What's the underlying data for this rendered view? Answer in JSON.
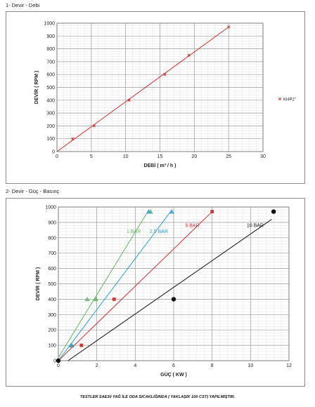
{
  "section1_title": "1- Devir - Debi",
  "section2_title": "2- Devir - Güç - Basınç",
  "footer_note": "TESTLER SAE30 YAĞ İLE ODA SICAKLIĞINDA ( YAKLAŞIK 100 CST) YAPILMIŞTIR.",
  "chart_data": [
    {
      "type": "scatter",
      "xlabel": "DEBİ ( m³ / h )",
      "ylabel": "DEVİR ( RPM )",
      "xlim": [
        0,
        30
      ],
      "ylim": [
        0,
        1000
      ],
      "xticks": [
        "0",
        "5",
        "10",
        "15",
        "20",
        "25",
        "30"
      ],
      "yticks": [
        "0",
        "100",
        "200",
        "300",
        "400",
        "500",
        "600",
        "700",
        "800",
        "900",
        "1000"
      ],
      "grid": true,
      "legend_position": "right",
      "series": [
        {
          "name": "KHP2\"",
          "color": "#d03030",
          "marker": "x",
          "points": [
            [
              2.3,
              100
            ],
            [
              5.4,
              200
            ],
            [
              10.5,
              400
            ],
            [
              15.7,
              600
            ],
            [
              19.2,
              750
            ],
            [
              25,
              970
            ]
          ],
          "trendline": [
            [
              0,
              0
            ],
            [
              25,
              970
            ]
          ]
        }
      ]
    },
    {
      "type": "scatter",
      "xlabel": "GÜÇ ( KW )",
      "ylabel": "DEVİR ( RPM )",
      "xlim": [
        0,
        12
      ],
      "ylim": [
        0,
        1000
      ],
      "xticks": [
        "0",
        "2",
        "4",
        "6",
        "8",
        "10",
        "12"
      ],
      "yticks": [
        "0",
        "100",
        "200",
        "300",
        "400",
        "500",
        "600",
        "700",
        "800",
        "900",
        "1000"
      ],
      "grid": true,
      "series": [
        {
          "name": "1 BAR",
          "color": "#5cb85c",
          "marker": "triangle",
          "points": [
            [
              0.65,
              100
            ],
            [
              1.5,
              400
            ],
            [
              1.95,
              400
            ],
            [
              4.8,
              970
            ]
          ],
          "trendline": [
            [
              0,
              20
            ],
            [
              4.7,
              980
            ]
          ],
          "label_at": [
            3.55,
            830
          ]
        },
        {
          "name": "2,5 BAR",
          "color": "#2aa0dc",
          "marker": "triangle",
          "points": [
            [
              0.7,
              100
            ],
            [
              4.7,
              970
            ],
            [
              5.9,
              970
            ]
          ],
          "trendline": [
            [
              0,
              0
            ],
            [
              5.9,
              980
            ]
          ],
          "label_at": [
            4.75,
            830
          ]
        },
        {
          "name": "5 BAR",
          "color": "#d93030",
          "marker": "square",
          "points": [
            [
              1.2,
              100
            ],
            [
              2.9,
              400
            ],
            [
              8,
              970
            ]
          ],
          "trendline": [
            [
              0,
              0
            ],
            [
              8,
              970
            ]
          ],
          "label_at": [
            6.6,
            870
          ]
        },
        {
          "name": "10 BAR",
          "color": "#111111",
          "marker": "circle",
          "points": [
            [
              0,
              0
            ],
            [
              6,
              400
            ],
            [
              11.2,
              970
            ]
          ],
          "trendline": [
            [
              0.5,
              0
            ],
            [
              11.1,
              920
            ]
          ],
          "label_at": [
            9.8,
            870
          ]
        }
      ]
    }
  ]
}
